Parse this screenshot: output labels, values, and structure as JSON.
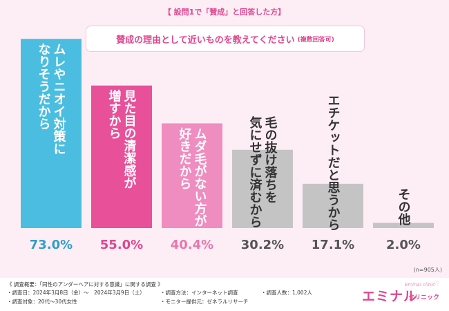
{
  "header": {
    "title": "【 設問1で「賛成」と回答した方】"
  },
  "question": {
    "main": "賛成の理由として近いものを教えてください",
    "sub": "(複数回答可)"
  },
  "chart_data": {
    "type": "bar",
    "title": "賛成の理由として近いものを教えてください(複数回答可)",
    "categories": [
      "ムレやニオイ対策になりそうだから",
      "見た目の清潔感が増すから",
      "ムダ毛がない方が好きだから",
      "毛の抜け落ちを気にせずに済むから",
      "エチケットだと思うから",
      "その他"
    ],
    "label_columns": [
      [
        "ムレやニオイ対策に",
        "なりそうだから"
      ],
      [
        "見た目の清潔感が",
        "増すから"
      ],
      [
        "ムダ毛がない方が",
        "好きだから"
      ],
      [
        "毛の抜け落ちを",
        "気にせずに済むから"
      ],
      [
        "エチケットだと思うから"
      ],
      [
        "その他"
      ]
    ],
    "values": [
      73.0,
      55.0,
      40.4,
      30.2,
      17.1,
      2.0
    ],
    "value_labels": [
      "73.0%",
      "55.0%",
      "40.4%",
      "30.2%",
      "17.1%",
      "2.0%"
    ],
    "ylim": [
      0,
      80
    ],
    "xlabel": "",
    "ylabel": "",
    "grid": false,
    "colors": {
      "bars": [
        "#4bbde0",
        "#e8509a",
        "#ef8cc0",
        "#c4c4c4",
        "#c4c4c4",
        "#c4c4c4"
      ],
      "value_text": [
        "#2f9ec7",
        "#e0468f",
        "#e877ad",
        "#555555",
        "#555555",
        "#555555"
      ],
      "label_text": [
        "#ffffff",
        "#ffffff",
        "#ffffff",
        "#333333",
        "#333333",
        "#333333"
      ]
    }
  },
  "sample_note": "(n=905人)",
  "footer": {
    "overview": "《 調査概要：「同性のアンダーヘアに対する意識」に関する調査 》",
    "date": "調査日：2024年3月8日（金）〜　2024年3月9日（土）",
    "method": "調査方法：インターネット調査",
    "count": "調査人数：1,002人",
    "target": "調査対象：20代〜30代女性",
    "provider": "モニター提供元：ゼネラルリサーチ"
  },
  "logo": {
    "main": "エミナル",
    "sub": "クリニック",
    "en": "Eminal clinic",
    "heart": "♡"
  },
  "palette": {
    "accent": "#e0468f",
    "background": "#fdeef5"
  }
}
